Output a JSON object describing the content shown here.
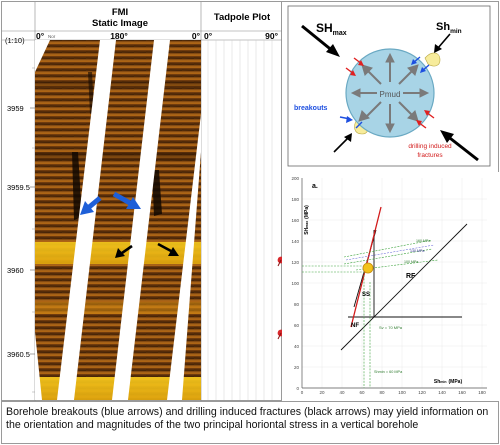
{
  "log": {
    "scale_label": "(1:10)",
    "fmi_title": "FMI",
    "fmi_subtitle": "Static Image",
    "tadpole_title": "Tadpole Plot",
    "fmi_axis": {
      "start": "0°",
      "start_note": "Nor",
      "mid": "180°",
      "end": "0°"
    },
    "tadpole_axis": {
      "start": "0°",
      "end": "90°"
    },
    "depths": [
      "3959",
      "3959.5",
      "3960",
      "3960.5"
    ],
    "colors": {
      "blue_arrow": "#1e5fd8",
      "black_arrow": "#000000",
      "tadpole_red": "#d8272b",
      "fmi_yellow": "#f2c21a",
      "fmi_dark": "#5a2e08"
    }
  },
  "stress_diagram": {
    "sh_max_label": "SH",
    "sh_max_sub": "max",
    "sh_min_label": "Sh",
    "sh_min_sub": "min",
    "center_label": "Pmud",
    "breakouts_label": "breakouts",
    "fractures_label_line1": "drilling induced",
    "fractures_label_line2": "fractures",
    "colors": {
      "borehole": "#a8d4e6",
      "breakout_arrow": "#1d4fe0",
      "fracture_arrow": "#e02020",
      "yellow": "#f7ec9c"
    }
  },
  "stress_polygon": {
    "panel_label": "a.",
    "y_axis_label": "SH",
    "y_axis_sub": "max",
    "y_axis_unit": "(MPa)",
    "x_axis_label": "Sh",
    "x_axis_sub": "min",
    "x_axis_unit": "(MPa)",
    "x_ticks": [
      "0",
      "20",
      "40",
      "60",
      "80",
      "100",
      "120",
      "140",
      "160",
      "180"
    ],
    "y_ticks": [
      "0",
      "20",
      "40",
      "60",
      "80",
      "100",
      "120",
      "140",
      "160",
      "180",
      "200"
    ],
    "regions": [
      "RF",
      "SS",
      "NF"
    ],
    "line_labels": [
      "160 MPa",
      "130 MPa",
      "100 MPa"
    ],
    "annotation_sv": "Sv = 70 MPa",
    "annotation_shmin": "Shmin = 60 MPa"
  },
  "caption": "Borehole breakouts (blue arrows) and drilling induced fractures (black arrows) may yield information on the orientation and magnitudes of the two principal horiontal stress in a vertical borehole"
}
